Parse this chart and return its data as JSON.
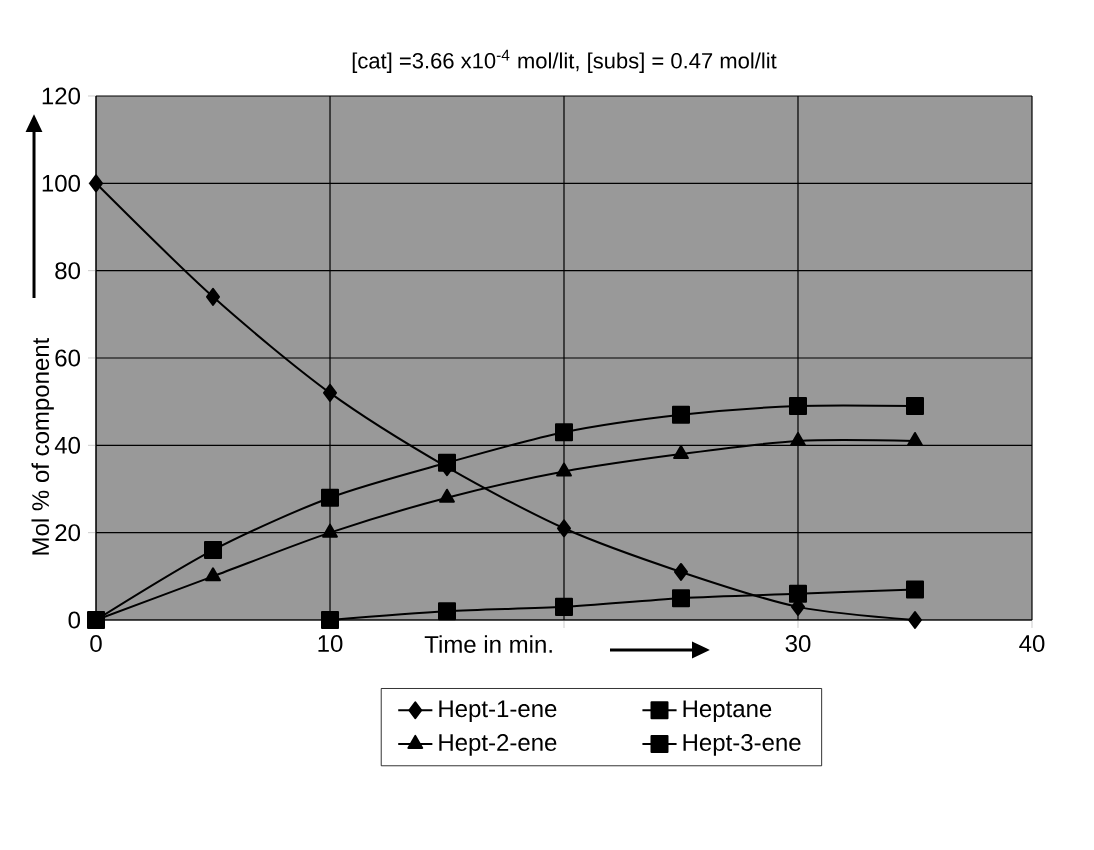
{
  "chart_data": {
    "type": "line",
    "title": "[cat] =3.66 x10$^{-4}$ mol/lit, [subs] = 0.47 mol/lit",
    "xlabel": "Time in min.",
    "ylabel": "Mol % of component",
    "x": [
      0,
      5,
      10,
      15,
      20,
      25,
      30,
      35
    ],
    "series": [
      {
        "name": "Hept-1-ene",
        "color": "#000000",
        "marker": "diamond",
        "values": [
          100,
          74,
          52,
          35,
          21,
          11,
          3,
          0
        ]
      },
      {
        "name": "Heptane",
        "color": "#000000",
        "marker": "square",
        "values": [
          0,
          16,
          28,
          36,
          43,
          47,
          49,
          49
        ]
      },
      {
        "name": "Hept-2-ene",
        "color": "#000000",
        "marker": "triangle",
        "values": [
          0,
          10,
          20,
          28,
          34,
          38,
          41,
          41
        ]
      },
      {
        "name": "Hept-3-ene",
        "color": "#000000",
        "marker": "square",
        "x": [
          10,
          15,
          20,
          25,
          30,
          35
        ],
        "values": [
          0,
          2,
          3,
          5,
          6,
          7
        ]
      }
    ],
    "xlim": [
      0,
      40
    ],
    "xticks": [
      0,
      10,
      {
        "value": 20,
        "label": null
      },
      30,
      40
    ],
    "ylim": [
      0,
      120
    ],
    "yticks": [
      0,
      20,
      40,
      60,
      80,
      100,
      120
    ],
    "grid": true,
    "legend": "bottom",
    "line_style": "solid"
  }
}
